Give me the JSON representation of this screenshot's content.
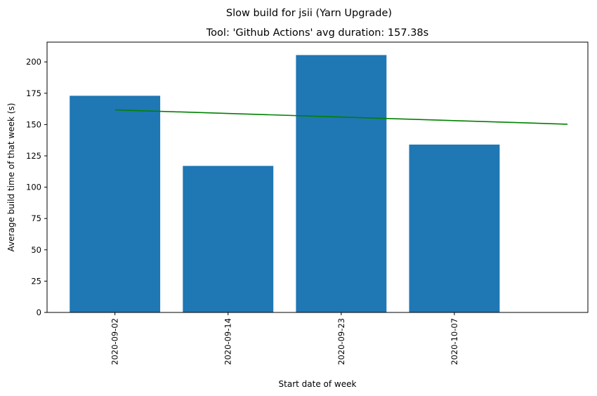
{
  "chart_data": {
    "type": "bar",
    "suptitle": "Slow build for jsii (Yarn Upgrade)",
    "title": "Tool: 'Github Actions' avg duration: 157.38s",
    "xlabel": "Start date of week",
    "ylabel": "Average build time of that week (s)",
    "categories": [
      "2020-09-02",
      "2020-09-14",
      "2020-09-23",
      "2020-10-07"
    ],
    "values": [
      173,
      117,
      205.5,
      134
    ],
    "ylim": [
      0,
      215.8
    ],
    "yticks": [
      0,
      25,
      50,
      75,
      100,
      125,
      150,
      175,
      200
    ],
    "xlim": [
      -0.6,
      4.18
    ],
    "bar_width": 0.8,
    "bar_color": "#1f77b4",
    "trend_line": {
      "color": "#008000",
      "x": [
        0,
        4
      ],
      "y": [
        161.7,
        150.3
      ]
    },
    "grid": false,
    "legend": "none"
  }
}
